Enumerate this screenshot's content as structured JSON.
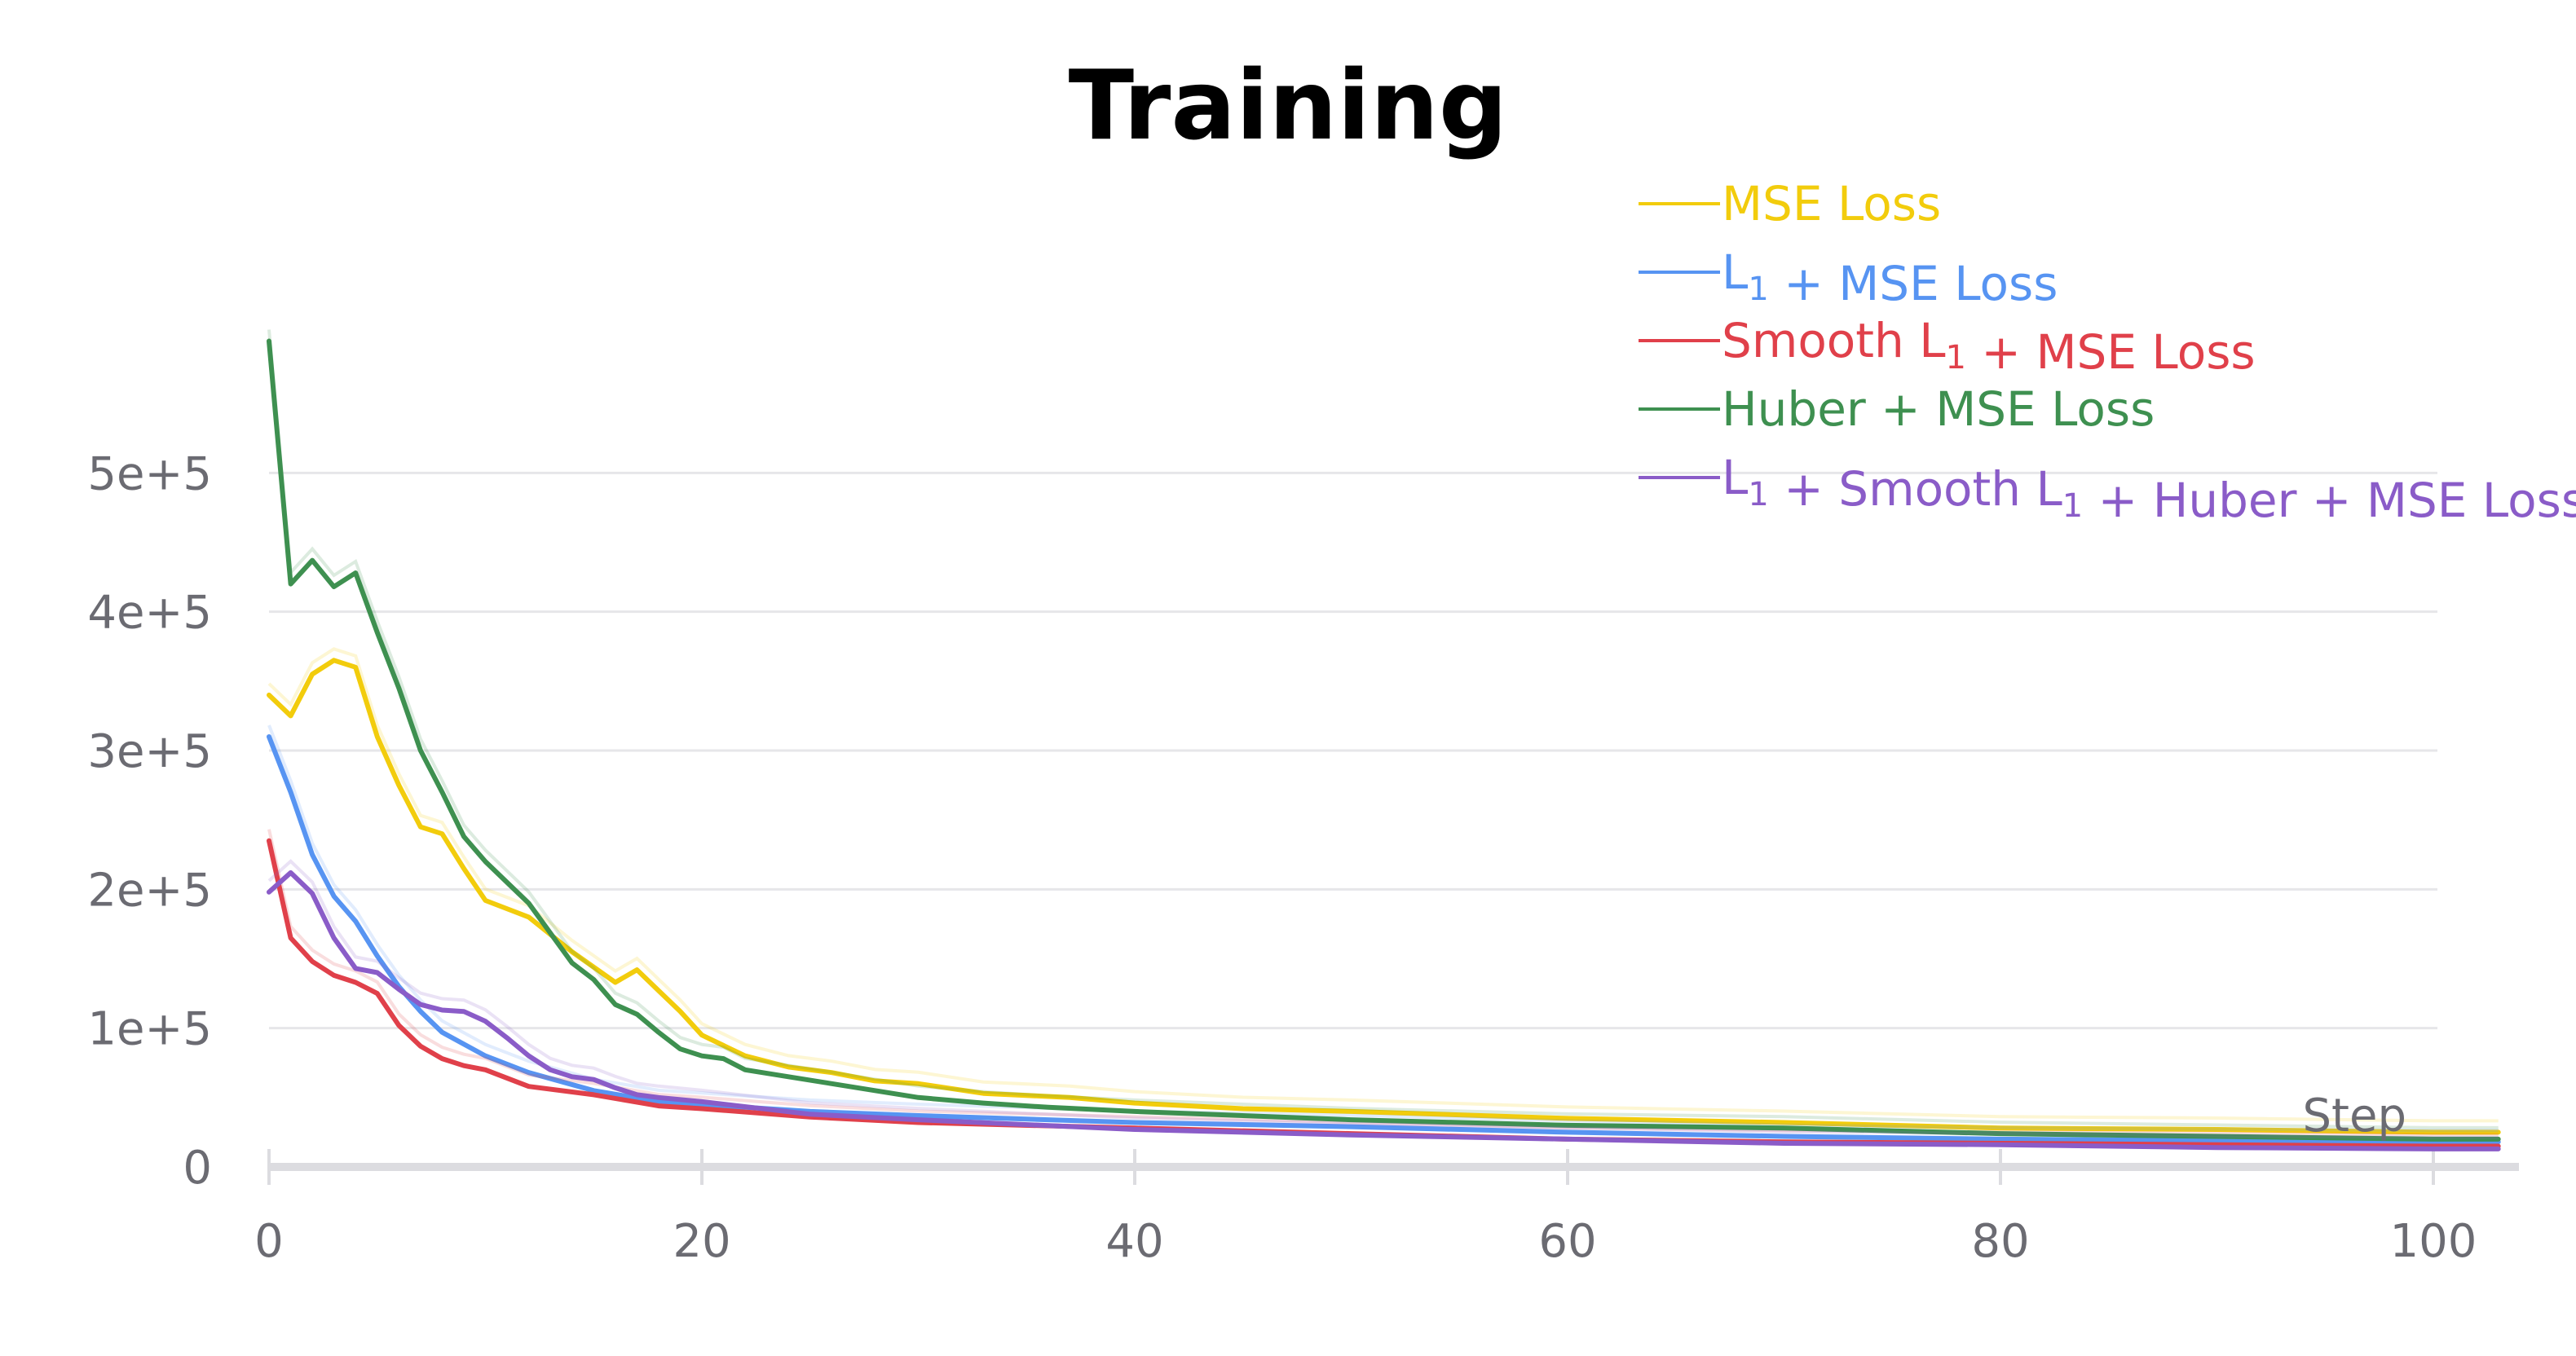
{
  "chart_data": {
    "type": "line",
    "title": "Training",
    "xlabel": "Step",
    "ylabel": "",
    "xlim": [
      0,
      103
    ],
    "ylim": [
      0,
      600000
    ],
    "x_ticks": [
      0,
      20,
      40,
      60,
      80,
      100
    ],
    "x_tick_labels": [
      "0",
      "20",
      "40",
      "60",
      "80",
      "100"
    ],
    "y_ticks": [
      0,
      100000,
      200000,
      300000,
      400000,
      500000
    ],
    "y_tick_labels": [
      "0",
      "1e+5",
      "2e+5",
      "3e+5",
      "4e+5",
      "5e+5"
    ],
    "grid": true,
    "legend_position": "top-right",
    "series": [
      {
        "name": "MSE Loss",
        "legend_parts": [
          {
            "t": "MSE Loss",
            "sub": false
          }
        ],
        "color": "#f2cc0c",
        "x": [
          0,
          1,
          2,
          3,
          4,
          5,
          6,
          7,
          8,
          9,
          10,
          12,
          14,
          16,
          17,
          18,
          19,
          20,
          22,
          24,
          26,
          28,
          30,
          33,
          37,
          40,
          45,
          50,
          60,
          70,
          80,
          90,
          100,
          103
        ],
        "values": [
          340000,
          325000,
          355000,
          365000,
          360000,
          310000,
          275000,
          245000,
          240000,
          215000,
          192000,
          180000,
          155000,
          133000,
          142000,
          127000,
          112000,
          95000,
          80000,
          72000,
          68000,
          62000,
          60000,
          53000,
          50000,
          46000,
          42000,
          40000,
          35000,
          32000,
          28000,
          27000,
          25000,
          25000
        ]
      },
      {
        "name": "L1 + MSE Loss",
        "legend_parts": [
          {
            "t": "L",
            "sub": false
          },
          {
            "t": "1",
            "sub": true
          },
          {
            "t": " + MSE Loss",
            "sub": false
          }
        ],
        "color": "#5794f2",
        "x": [
          0,
          1,
          2,
          3,
          4,
          5,
          6,
          7,
          8,
          10,
          12,
          15,
          18,
          20,
          25,
          30,
          40,
          50,
          60,
          70,
          80,
          90,
          100,
          103
        ],
        "values": [
          310000,
          270000,
          225000,
          195000,
          177000,
          152000,
          130000,
          112000,
          97000,
          80000,
          68000,
          55000,
          47000,
          45000,
          40000,
          37000,
          32000,
          29000,
          25000,
          22000,
          20000,
          19000,
          18000,
          18000
        ]
      },
      {
        "name": "Smooth L1 + MSE Loss",
        "legend_parts": [
          {
            "t": "Smooth L",
            "sub": false
          },
          {
            "t": "1",
            "sub": true
          },
          {
            "t": " + MSE Loss",
            "sub": false
          }
        ],
        "color": "#e0404a",
        "x": [
          0,
          1,
          2,
          3,
          4,
          5,
          6,
          7,
          8,
          9,
          10,
          12,
          15,
          18,
          20,
          25,
          30,
          40,
          50,
          60,
          70,
          80,
          90,
          100,
          103
        ],
        "values": [
          235000,
          165000,
          148000,
          138000,
          133000,
          125000,
          102000,
          87000,
          78000,
          73000,
          70000,
          58000,
          52000,
          44000,
          42000,
          36000,
          32000,
          28000,
          24000,
          20000,
          18000,
          17000,
          16000,
          15000,
          15000
        ]
      },
      {
        "name": "Huber + MSE Loss",
        "legend_parts": [
          {
            "t": "Huber + MSE Loss",
            "sub": false
          }
        ],
        "color": "#3e9050",
        "x": [
          0,
          1,
          2,
          3,
          4,
          5,
          6,
          7,
          8,
          9,
          10,
          12,
          14,
          15,
          16,
          17,
          18,
          19,
          20,
          21,
          22,
          24,
          26,
          28,
          30,
          33,
          36,
          40,
          50,
          60,
          70,
          80,
          90,
          100,
          103
        ],
        "values": [
          595000,
          420000,
          437000,
          418000,
          428000,
          385000,
          345000,
          300000,
          270000,
          238000,
          220000,
          190000,
          147000,
          135000,
          117000,
          110000,
          97000,
          85000,
          80000,
          78000,
          70000,
          65000,
          60000,
          55000,
          50000,
          46000,
          43000,
          40000,
          34000,
          30000,
          28000,
          24000,
          22000,
          20000,
          20000
        ]
      },
      {
        "name": "L1 + Smooth L1 + Huber + MSE Loss",
        "legend_parts": [
          {
            "t": "L",
            "sub": false
          },
          {
            "t": "1",
            "sub": true
          },
          {
            "t": " + Smooth L",
            "sub": false
          },
          {
            "t": "1",
            "sub": true
          },
          {
            "t": " + Huber + MSE Loss",
            "sub": false
          }
        ],
        "color": "#8a5cc8",
        "x": [
          0,
          1,
          2,
          3,
          4,
          5,
          6,
          7,
          8,
          9,
          10,
          11,
          12,
          13,
          14,
          15,
          16,
          17,
          18,
          20,
          25,
          30,
          40,
          50,
          60,
          70,
          80,
          90,
          100,
          103
        ],
        "values": [
          198000,
          212000,
          197000,
          165000,
          143000,
          140000,
          128000,
          117000,
          113000,
          112000,
          105000,
          93000,
          80000,
          70000,
          65000,
          63000,
          57000,
          52000,
          50000,
          47000,
          38000,
          34000,
          27000,
          23000,
          20000,
          17000,
          16000,
          14000,
          13000,
          13000
        ]
      }
    ]
  }
}
